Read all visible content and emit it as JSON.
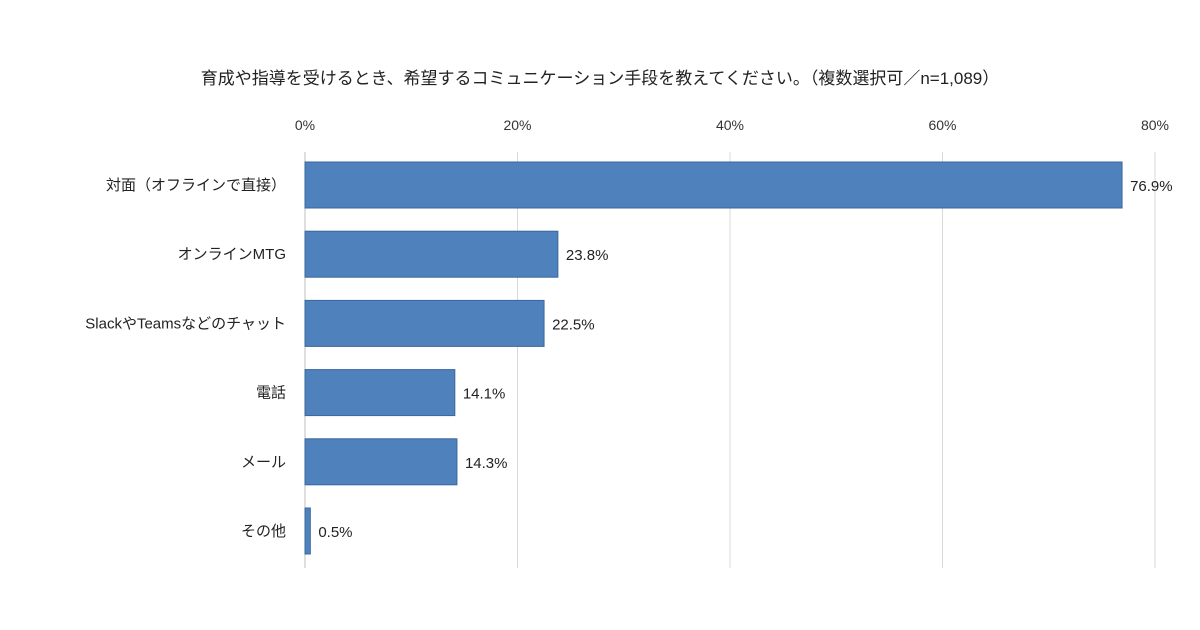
{
  "chart_data": {
    "type": "bar",
    "orientation": "horizontal",
    "title": "育成や指導を受けるとき、希望するコミュニケーション手段を教えてください。（複数選択可／n=1,089）",
    "categories": [
      "対面（オフラインで直接）",
      "オンラインMTG",
      "SlackやTeamsなどのチャット",
      "電話",
      "メール",
      "その他"
    ],
    "values": [
      76.9,
      23.8,
      22.5,
      14.1,
      14.3,
      0.5
    ],
    "data_labels": [
      "76.9%",
      "23.8%",
      "22.5%",
      "14.1%",
      "14.3%",
      "0.5%"
    ],
    "xlim": [
      0,
      80
    ],
    "xticks": [
      0,
      20,
      40,
      60,
      80
    ],
    "xtick_labels": [
      "0%",
      "20%",
      "40%",
      "60%",
      "80%"
    ],
    "x_axis_position": "top",
    "grid": true,
    "bar_color": "#4f81bd",
    "bar_border_color": "#3a679c"
  }
}
